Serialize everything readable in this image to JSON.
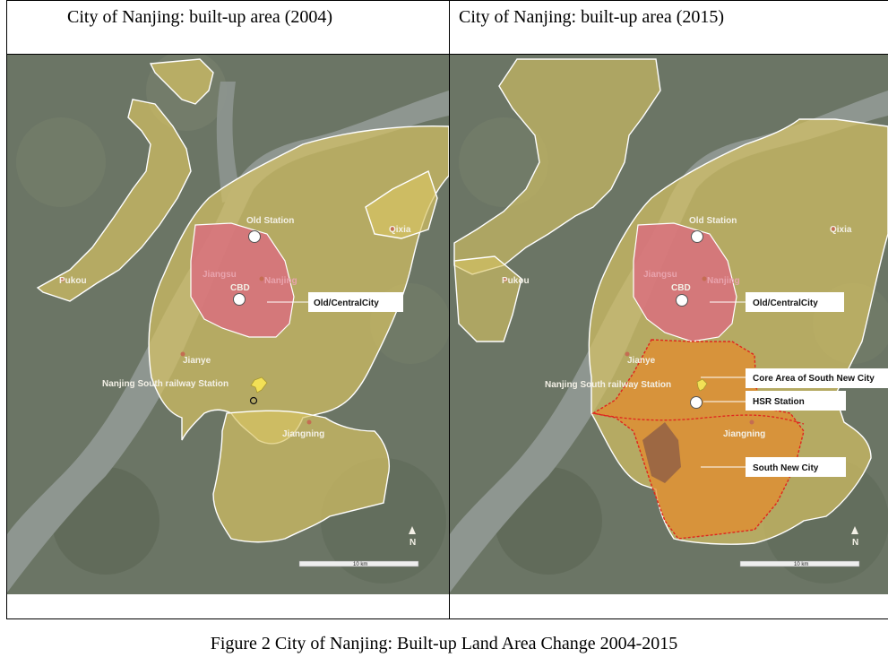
{
  "panels": [
    {
      "title": "City of Nanjing: built-up area (2004)",
      "labels": {
        "old_station": "Old Station",
        "qixia": "Qixia",
        "pukou": "Pukou",
        "jiangsu": "Jiangsu",
        "nanjing": "Nanjing",
        "cbd": "CBD",
        "jianye": "Jianye",
        "south_station": "Nanjing South railway Station",
        "jiangning": "Jiangning",
        "north": "N",
        "scale": "10 km"
      },
      "callouts": {
        "old_central_city": "Old/CentralCity"
      }
    },
    {
      "title": "City of Nanjing: built-up area (2015)",
      "labels": {
        "old_station": "Old Station",
        "qixia": "Qixia",
        "pukou": "Pukou",
        "jiangsu": "Jiangsu",
        "nanjing": "Nanjing",
        "cbd": "CBD",
        "jianye": "Jianye",
        "south_station": "Nanjing South railway Station",
        "jiangning": "Jiangning",
        "north": "N",
        "scale": "10 km"
      },
      "callouts": {
        "old_central_city": "Old/CentralCity",
        "core_area": "Core Area of South New City",
        "hsr_station": "HSR Station",
        "south_new_city": "South New City"
      }
    }
  ],
  "caption": "Figure 2 City of Nanjing: Built-up Land Area Change 2004-2015",
  "colors": {
    "built_up": "#d8c463",
    "central_city": "#d9707e",
    "south_new_city": "#e58a2c",
    "river": "#8e9690",
    "satellite": "#6c7766"
  }
}
